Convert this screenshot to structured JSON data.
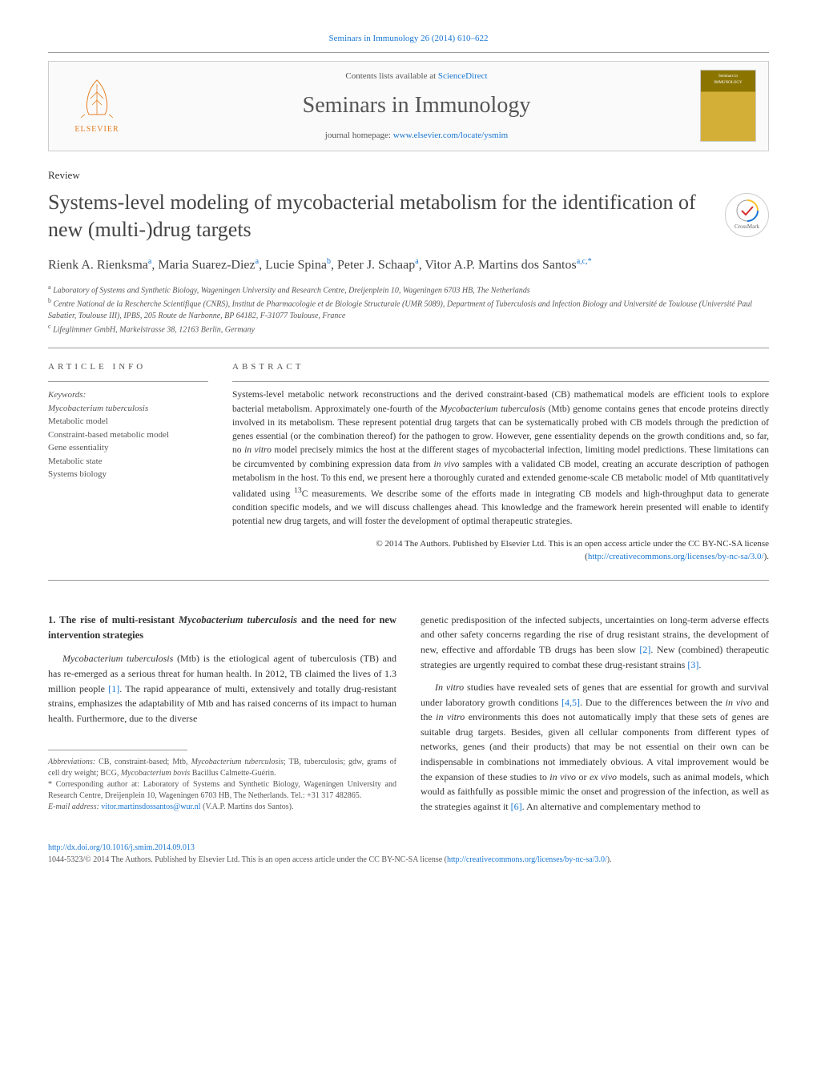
{
  "header": {
    "topLink": "Seminars in Immunology 26 (2014) 610–622",
    "contentsLine": "Contents lists available at ",
    "contentsLink": "ScienceDirect",
    "journalName": "Seminars in Immunology",
    "homepageLabel": "journal homepage: ",
    "homepageUrl": "www.elsevier.com/locate/ysmim",
    "elsevierName": "ELSEVIER",
    "coverTop": "Seminars in",
    "coverMain": "IMMUNOLOGY"
  },
  "article": {
    "type": "Review",
    "title": "Systems-level modeling of mycobacterial metabolism for the identification of new (multi-)drug targets",
    "crossmark": "CrossMark",
    "authorsHtml": "Rienk A. Rienksma<sup>a</sup>, Maria Suarez-Diez<sup>a</sup>, Lucie Spina<sup>b</sup>, Peter J. Schaap<sup>a</sup>, Vitor A.P. Martins dos Santos<sup>a,c,*</sup>",
    "affiliations": [
      "a Laboratory of Systems and Synthetic Biology, Wageningen University and Research Centre, Dreijenplein 10, Wageningen 6703 HB, The Netherlands",
      "b Centre National de la Rescherche Scientifique (CNRS), Institut de Pharmacologie et de Biologie Structurale (UMR 5089), Department of Tuberculosis and Infection Biology and Université de Toulouse (Université Paul Sabatier, Toulouse III), IPBS, 205 Route de Narbonne, BP 64182, F-31077 Toulouse, France",
      "c Lifeglimmer GmbH, Markelstrasse 38, 12163 Berlin, Germany"
    ]
  },
  "info": {
    "heading": "ARTICLE INFO",
    "keywordsLabel": "Keywords:",
    "keywords": [
      "Mycobacterium tuberculosis",
      "Metabolic model",
      "Constraint-based metabolic model",
      "Gene essentiality",
      "Metabolic state",
      "Systems biology"
    ]
  },
  "abstract": {
    "heading": "ABSTRACT",
    "text": "Systems-level metabolic network reconstructions and the derived constraint-based (CB) mathematical models are efficient tools to explore bacterial metabolism. Approximately one-fourth of the Mycobacterium tuberculosis (Mtb) genome contains genes that encode proteins directly involved in its metabolism. These represent potential drug targets that can be systematically probed with CB models through the prediction of genes essential (or the combination thereof) for the pathogen to grow. However, gene essentiality depends on the growth conditions and, so far, no in vitro model precisely mimics the host at the different stages of mycobacterial infection, limiting model predictions. These limitations can be circumvented by combining expression data from in vivo samples with a validated CB model, creating an accurate description of pathogen metabolism in the host. To this end, we present here a thoroughly curated and extended genome-scale CB metabolic model of Mtb quantitatively validated using 13C measurements. We describe some of the efforts made in integrating CB models and high-throughput data to generate condition specific models, and we will discuss challenges ahead. This knowledge and the framework herein presented will enable to identify potential new drug targets, and will foster the development of optimal therapeutic strategies.",
    "copyright": "© 2014 The Authors. Published by Elsevier Ltd. This is an open access article under the CC BY-NC-SA license (",
    "licenseUrl": "http://creativecommons.org/licenses/by-nc-sa/3.0/",
    "copyrightClose": ")."
  },
  "body": {
    "section1Heading": "1. The rise of multi-resistant Mycobacterium tuberculosis and the need for new intervention strategies",
    "para1": "Mycobacterium tuberculosis (Mtb) is the etiological agent of tuberculosis (TB) and has re-emerged as a serious threat for human health. In 2012, TB claimed the lives of 1.3 million people [1]. The rapid appearance of multi, extensively and totally drug-resistant strains, emphasizes the adaptability of Mtb and has raised concerns of its impact to human health. Furthermore, due to the diverse",
    "para2": "genetic predisposition of the infected subjects, uncertainties on long-term adverse effects and other safety concerns regarding the rise of drug resistant strains, the development of new, effective and affordable TB drugs has been slow [2]. New (combined) therapeutic strategies are urgently required to combat these drug-resistant strains [3].",
    "para3": "In vitro studies have revealed sets of genes that are essential for growth and survival under laboratory growth conditions [4,5]. Due to the differences between the in vivo and the in vitro environments this does not automatically imply that these sets of genes are suitable drug targets. Besides, given all cellular components from different types of networks, genes (and their products) that may be not essential on their own can be indispensable in combinations not immediately obvious. A vital improvement would be the expansion of these studies to in vivo or ex vivo models, such as animal models, which would as faithfully as possible mimic the onset and progression of the infection, as well as the strategies against it [6]. An alternative and complementary method to"
  },
  "footnotes": {
    "abbrevLabel": "Abbreviations:",
    "abbrev": " CB, constraint-based; Mtb, Mycobacterium tuberculosis; TB, tuberculosis; gdw, grams of cell dry weight; BCG, Mycobacterium bovis Bacillus Calmette-Guérin.",
    "corresp": "* Corresponding author at: Laboratory of Systems and Synthetic Biology, Wageningen University and Research Centre, Dreijenplein 10, Wageningen 6703 HB, The Netherlands. Tel.: +31 317 482865.",
    "emailLabel": "E-mail address: ",
    "email": "vitor.martinsdossantos@wur.nl",
    "emailPerson": " (V.A.P. Martins dos Santos)."
  },
  "bottom": {
    "doi": "http://dx.doi.org/10.1016/j.smim.2014.09.013",
    "issn": "1044-5323/© 2014 The Authors. Published by Elsevier Ltd. This is an open access article under the CC BY-NC-SA license (",
    "licenseUrl": "http://creativecommons.org/licenses/by-nc-sa/3.0/",
    "close": ")."
  },
  "colors": {
    "link": "#1976d2",
    "text": "#333333",
    "muted": "#555555",
    "elsevier": "#e67e22"
  }
}
